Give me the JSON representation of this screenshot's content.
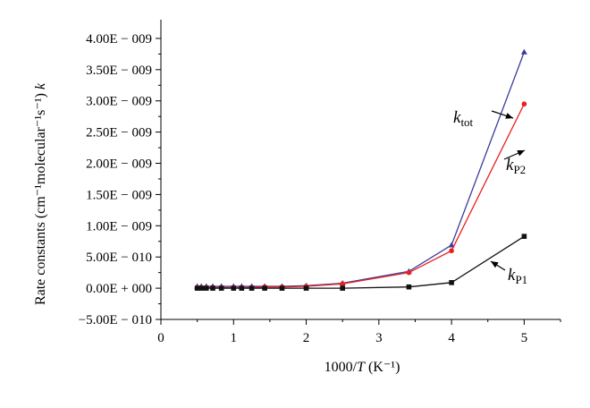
{
  "chart_data": {
    "type": "line",
    "xlabel": "1000/T (K⁻¹)",
    "ylabel": "Rate constants (cm⁻¹molecular⁻¹s⁻¹) k",
    "xlim": [
      0,
      5.5
    ],
    "ylim": [
      -5e-10,
      4.3e-09
    ],
    "x_ticks": [
      0,
      1,
      2,
      3,
      4,
      5
    ],
    "x_tick_labels": [
      "0",
      "1",
      "2",
      "3",
      "4",
      "5"
    ],
    "y_ticks": [
      -5e-10,
      0,
      5e-10,
      1e-09,
      1.5e-09,
      2e-09,
      2.5e-09,
      3e-09,
      3.5e-09,
      4e-09
    ],
    "y_tick_labels": [
      "−5.00E − 010",
      "0.00E + 000",
      "5.00E − 010",
      "1.00E − 009",
      "1.50E − 009",
      "2.00E − 009",
      "2.50E − 009",
      "3.00E − 009",
      "3.50E − 009",
      "4.00E − 009"
    ],
    "x": [
      0.5,
      0.556,
      0.625,
      0.714,
      0.833,
      1.0,
      1.111,
      1.25,
      1.429,
      1.667,
      2.0,
      2.5,
      3.413,
      4.0,
      5.0
    ],
    "series": [
      {
        "name": "k_tot",
        "label_main": "k",
        "label_sub": "tot",
        "color": "#3b3b9e",
        "marker": "triangle",
        "values": [
          3e-11,
          3e-11,
          3e-11,
          3e-11,
          3e-11,
          3e-11,
          3e-11,
          3e-11,
          3e-11,
          3e-11,
          4e-11,
          8e-11,
          2.7e-10,
          6.9e-10,
          3.78e-09
        ]
      },
      {
        "name": "k_P2",
        "label_main": "k",
        "label_sub": "P2",
        "color": "#e8211f",
        "marker": "circle",
        "values": [
          1e-11,
          1e-11,
          1e-11,
          1e-11,
          1e-11,
          1e-11,
          1e-11,
          1e-11,
          2e-11,
          2e-11,
          3e-11,
          7e-11,
          2.5e-10,
          6e-10,
          2.95e-09
        ]
      },
      {
        "name": "k_P1",
        "label_main": "k",
        "label_sub": "P1",
        "color": "#111111",
        "marker": "square",
        "values": [
          0,
          0,
          0,
          0,
          0,
          0,
          0,
          0,
          0,
          0,
          0,
          0,
          2e-11,
          9e-11,
          8.3e-10
        ]
      }
    ],
    "annotations": [
      {
        "series": "k_tot",
        "arrow": "pointing at k_tot line near x=4.6"
      },
      {
        "series": "k_P2",
        "arrow": "pointing at k_P2 line near x=4.5"
      },
      {
        "series": "k_P1",
        "arrow": "pointing at k_P1 line near x=4.5"
      }
    ],
    "grid": false,
    "legend": "none (inline arrow labels)"
  }
}
